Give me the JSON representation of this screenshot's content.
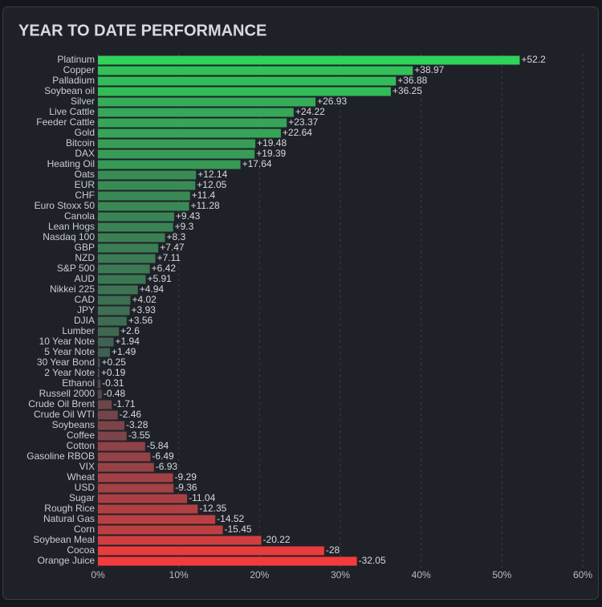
{
  "chart_data": {
    "type": "bar",
    "orientation": "horizontal",
    "title": "YEAR TO DATE PERFORMANCE",
    "categories": [
      "Platinum",
      "Copper",
      "Palladium",
      "Soybean oil",
      "Silver",
      "Live Cattle",
      "Feeder Cattle",
      "Gold",
      "Bitcoin",
      "DAX",
      "Heating Oil",
      "Oats",
      "EUR",
      "CHF",
      "Euro Stoxx 50",
      "Canola",
      "Lean Hogs",
      "Nasdaq 100",
      "GBP",
      "NZD",
      "S&P 500",
      "AUD",
      "Nikkei 225",
      "CAD",
      "JPY",
      "DJIA",
      "Lumber",
      "10 Year Note",
      "5 Year Note",
      "30 Year Bond",
      "2 Year Note",
      "Ethanol",
      "Russell 2000",
      "Crude Oil Brent",
      "Crude Oil WTI",
      "Soybeans",
      "Coffee",
      "Cotton",
      "Gasoline RBOB",
      "VIX",
      "Wheat",
      "USD",
      "Sugar",
      "Rough Rice",
      "Natural Gas",
      "Corn",
      "Soybean Meal",
      "Cocoa",
      "Orange Juice"
    ],
    "values": [
      52.2,
      38.97,
      36.88,
      36.25,
      26.93,
      24.22,
      23.37,
      22.64,
      19.48,
      19.39,
      17.64,
      12.14,
      12.05,
      11.4,
      11.28,
      9.43,
      9.3,
      8.3,
      7.47,
      7.11,
      6.42,
      5.91,
      4.94,
      4.02,
      3.93,
      3.56,
      2.6,
      1.94,
      1.49,
      0.25,
      0.19,
      -0.31,
      -0.48,
      -1.71,
      -2.46,
      -3.28,
      -3.55,
      -5.84,
      -6.49,
      -6.93,
      -9.29,
      -9.36,
      -11.04,
      -12.35,
      -14.52,
      -15.45,
      -20.22,
      -28,
      -32.05
    ],
    "value_labels": [
      "+52.2",
      "+38.97",
      "+36.88",
      "+36.25",
      "+26.93",
      "+24.22",
      "+23.37",
      "+22.64",
      "+19.48",
      "+19.39",
      "+17.64",
      "+12.14",
      "+12.05",
      "+11.4",
      "+11.28",
      "+9.43",
      "+9.3",
      "+8.3",
      "+7.47",
      "+7.11",
      "+6.42",
      "+5.91",
      "+4.94",
      "+4.02",
      "+3.93",
      "+3.56",
      "+2.6",
      "+1.94",
      "+1.49",
      "+0.25",
      "+0.19",
      "-0.31",
      "-0.48",
      "-1.71",
      "-2.46",
      "-3.28",
      "-3.55",
      "-5.84",
      "-6.49",
      "-6.93",
      "-9.29",
      "-9.36",
      "-11.04",
      "-12.35",
      "-14.52",
      "-15.45",
      "-20.22",
      "-28",
      "-32.05"
    ],
    "xlim": [
      0,
      60
    ],
    "xticks": [
      {
        "value": 0,
        "label": "0%"
      },
      {
        "value": 10,
        "label": "10%"
      },
      {
        "value": 20,
        "label": "20%"
      },
      {
        "value": 30,
        "label": "30%"
      },
      {
        "value": 40,
        "label": "40%"
      },
      {
        "value": 50,
        "label": "50%"
      },
      {
        "value": 60,
        "label": "60%"
      }
    ],
    "grid": true,
    "colors": {
      "positive": "#2fd35a",
      "negative": "#f43b3b",
      "neutral": "#434850"
    }
  }
}
